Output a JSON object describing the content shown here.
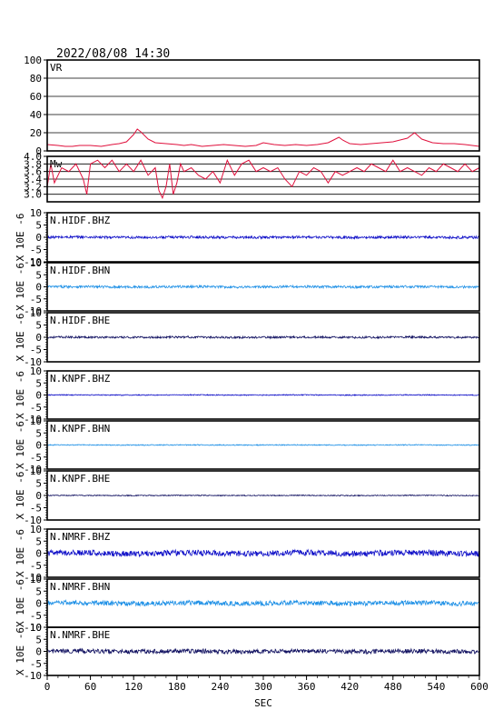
{
  "header": {
    "timestamp": "2022/08/08 14:30"
  },
  "chart_data": {
    "type": "line",
    "xlabel": "SEC",
    "xlim": [
      0,
      600
    ],
    "xticks": [
      "0",
      "60",
      "120",
      "180",
      "240",
      "300",
      "360",
      "420",
      "480",
      "540",
      "600"
    ],
    "panels": [
      {
        "label": "VR",
        "ylim": [
          0,
          100
        ],
        "yticks": [
          "0",
          "20",
          "40",
          "60",
          "80",
          "100"
        ],
        "grid": true,
        "color": "#e0103c",
        "series": {
          "x": [
            0,
            15,
            25,
            35,
            45,
            60,
            75,
            90,
            100,
            110,
            120,
            125,
            130,
            140,
            150,
            165,
            180,
            190,
            200,
            215,
            230,
            245,
            260,
            275,
            290,
            300,
            315,
            330,
            345,
            360,
            375,
            390,
            405,
            410,
            420,
            435,
            450,
            465,
            480,
            490,
            500,
            510,
            520,
            535,
            550,
            565,
            580,
            590,
            600
          ],
          "y": [
            7,
            6,
            5,
            5,
            6,
            6,
            5,
            7,
            8,
            10,
            18,
            24,
            21,
            13,
            9,
            8,
            7,
            6,
            7,
            5,
            6,
            7,
            6,
            5,
            6,
            9,
            7,
            6,
            7,
            6,
            7,
            9,
            15,
            12,
            8,
            7,
            8,
            9,
            10,
            12,
            14,
            20,
            13,
            9,
            8,
            8,
            7,
            6,
            5
          ]
        }
      },
      {
        "label": "Mw",
        "ylim": [
          2.8,
          4.0
        ],
        "yticks": [
          "3.0",
          "3.2",
          "3.4",
          "3.6",
          "3.8",
          "4.0"
        ],
        "grid": true,
        "color": "#e0103c",
        "series": {
          "x": [
            0,
            5,
            10,
            20,
            30,
            40,
            50,
            55,
            60,
            70,
            80,
            90,
            100,
            110,
            120,
            130,
            140,
            150,
            155,
            160,
            165,
            170,
            175,
            180,
            185,
            190,
            200,
            210,
            220,
            230,
            240,
            250,
            260,
            270,
            280,
            290,
            300,
            310,
            320,
            330,
            340,
            350,
            360,
            370,
            380,
            390,
            400,
            410,
            420,
            430,
            440,
            450,
            460,
            470,
            480,
            490,
            500,
            510,
            520,
            530,
            540,
            550,
            560,
            570,
            580,
            590,
            600
          ],
          "y": [
            3.2,
            3.8,
            3.3,
            3.7,
            3.6,
            3.8,
            3.4,
            3.0,
            3.8,
            3.9,
            3.7,
            3.9,
            3.6,
            3.8,
            3.6,
            3.9,
            3.5,
            3.7,
            3.1,
            2.9,
            3.2,
            3.8,
            3.0,
            3.3,
            3.8,
            3.6,
            3.7,
            3.5,
            3.4,
            3.6,
            3.3,
            3.9,
            3.5,
            3.8,
            3.9,
            3.6,
            3.7,
            3.6,
            3.7,
            3.4,
            3.2,
            3.6,
            3.5,
            3.7,
            3.6,
            3.3,
            3.6,
            3.5,
            3.6,
            3.7,
            3.6,
            3.8,
            3.7,
            3.6,
            3.9,
            3.6,
            3.7,
            3.6,
            3.5,
            3.7,
            3.6,
            3.8,
            3.7,
            3.6,
            3.8,
            3.6,
            3.7
          ]
        }
      },
      {
        "label": "N.HIDF.BHZ",
        "ylim": [
          -10,
          10
        ],
        "yticks": [
          "-10",
          "-5",
          "0",
          "5",
          "10"
        ],
        "ylabel": "X 10E -6",
        "color": "#1010c8",
        "noise_amplitude": 0.5,
        "values": []
      },
      {
        "label": "N.HIDF.BHN",
        "ylim": [
          -10,
          10
        ],
        "yticks": [
          "-10",
          "-5",
          "0",
          "5",
          "10"
        ],
        "ylabel": "X 10E -6",
        "color": "#1e90e6",
        "noise_amplitude": 0.5,
        "values": []
      },
      {
        "label": "N.HIDF.BHE",
        "ylim": [
          -10,
          10
        ],
        "yticks": [
          "-10",
          "-5",
          "0",
          "5",
          "10"
        ],
        "ylabel": "X 10E -6",
        "color": "#101060",
        "noise_amplitude": 0.4,
        "values": []
      },
      {
        "label": "N.KNPF.BHZ",
        "ylim": [
          -10,
          10
        ],
        "yticks": [
          "-10",
          "-5",
          "0",
          "5",
          "10"
        ],
        "ylabel": "X 10E -6",
        "color": "#1010c8",
        "noise_amplitude": 0.2,
        "values": []
      },
      {
        "label": "N.KNPF.BHN",
        "ylim": [
          -10,
          10
        ],
        "yticks": [
          "-10",
          "-5",
          "0",
          "5",
          "10"
        ],
        "ylabel": "X 10E -6",
        "color": "#1e90e6",
        "noise_amplitude": 0.2,
        "values": []
      },
      {
        "label": "N.KNPF.BHE",
        "ylim": [
          -10,
          10
        ],
        "yticks": [
          "-10",
          "-5",
          "0",
          "5",
          "10"
        ],
        "ylabel": "X 10E -6",
        "color": "#101060",
        "noise_amplitude": 0.2,
        "values": []
      },
      {
        "label": "N.NMRF.BHZ",
        "ylim": [
          -10,
          10
        ],
        "yticks": [
          "-10",
          "-5",
          "0",
          "5",
          "10"
        ],
        "ylabel": "X 10E -6",
        "color": "#1010c8",
        "noise_amplitude": 1.2,
        "values": []
      },
      {
        "label": "N.NMRF.BHN",
        "ylim": [
          -10,
          10
        ],
        "yticks": [
          "-10",
          "-5",
          "0",
          "5",
          "10"
        ],
        "ylabel": "X 10E -6",
        "color": "#1e90e6",
        "noise_amplitude": 1.0,
        "values": []
      },
      {
        "label": "N.NMRF.BHE",
        "ylim": [
          -10,
          10
        ],
        "yticks": [
          "-10",
          "-5",
          "0",
          "5",
          "10"
        ],
        "ylabel": "X 10E -6",
        "color": "#101060",
        "noise_amplitude": 0.9,
        "values": []
      }
    ]
  }
}
